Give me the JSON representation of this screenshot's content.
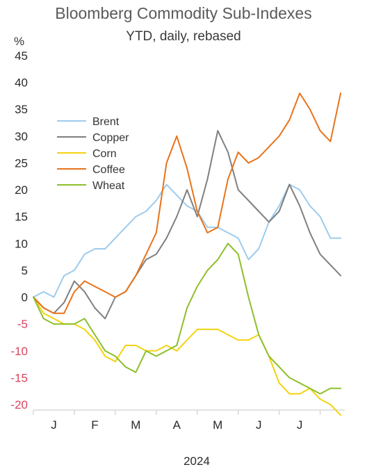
{
  "chart_data": {
    "type": "line",
    "title": "Bloomberg Commodity Sub-Indexes",
    "subtitle": "YTD, daily, rebased",
    "ylabel": "%",
    "xlabel": "2024",
    "ylim": [
      -20,
      45
    ],
    "yticks": [
      45,
      40,
      35,
      30,
      25,
      20,
      15,
      10,
      5,
      0,
      -5,
      -10,
      -15,
      -20
    ],
    "x_tick_labels": [
      "J",
      "F",
      "M",
      "A",
      "M",
      "J",
      "J"
    ],
    "x_month_positions": [
      0.5,
      1.5,
      2.5,
      3.5,
      4.5,
      5.5,
      6.5
    ],
    "x_range": [
      0,
      7.6
    ],
    "legend_position": "upper-left",
    "grid": false,
    "series": [
      {
        "name": "Brent",
        "color": "#9dcbed",
        "x": [
          0,
          0.25,
          0.5,
          0.75,
          1.0,
          1.25,
          1.5,
          1.75,
          2.0,
          2.25,
          2.5,
          2.75,
          3.0,
          3.25,
          3.5,
          3.75,
          4.0,
          4.25,
          4.5,
          4.75,
          5.0,
          5.25,
          5.5,
          5.75,
          6.0,
          6.25,
          6.5,
          6.75,
          7.0,
          7.25,
          7.5
        ],
        "values": [
          0,
          1,
          0,
          4,
          5,
          8,
          9,
          9,
          11,
          13,
          15,
          16,
          18,
          21,
          19,
          17,
          16,
          13,
          13,
          12,
          11,
          7,
          9,
          14,
          17,
          21,
          20,
          17,
          15,
          11,
          11
        ]
      },
      {
        "name": "Copper",
        "color": "#7f7f7f",
        "x": [
          0,
          0.25,
          0.5,
          0.75,
          1.0,
          1.25,
          1.5,
          1.75,
          2.0,
          2.25,
          2.5,
          2.75,
          3.0,
          3.25,
          3.5,
          3.75,
          4.0,
          4.25,
          4.5,
          4.75,
          5.0,
          5.25,
          5.5,
          5.75,
          6.0,
          6.25,
          6.5,
          6.75,
          7.0,
          7.25,
          7.5
        ],
        "values": [
          0,
          -2,
          -3,
          -1,
          3,
          1,
          -2,
          -4,
          0,
          1,
          4,
          7,
          8,
          11,
          15,
          20,
          15,
          22,
          31,
          27,
          20,
          18,
          16,
          14,
          16,
          21,
          17,
          12,
          8,
          6,
          4
        ]
      },
      {
        "name": "Corn",
        "color": "#f5d20f",
        "x": [
          0,
          0.25,
          0.5,
          0.75,
          1.0,
          1.25,
          1.5,
          1.75,
          2.0,
          2.25,
          2.5,
          2.75,
          3.0,
          3.25,
          3.5,
          3.75,
          4.0,
          4.25,
          4.5,
          4.75,
          5.0,
          5.25,
          5.5,
          5.75,
          6.0,
          6.25,
          6.5,
          6.75,
          7.0,
          7.25,
          7.5
        ],
        "values": [
          0,
          -3,
          -4,
          -5,
          -5,
          -6,
          -8,
          -11,
          -12,
          -9,
          -9,
          -10,
          -10,
          -9,
          -10,
          -8,
          -6,
          -6,
          -6,
          -7,
          -8,
          -8,
          -7,
          -11,
          -16,
          -18,
          -18,
          -17,
          -19,
          -20,
          -22
        ]
      },
      {
        "name": "Coffee",
        "color": "#e8731a",
        "x": [
          0,
          0.25,
          0.5,
          0.75,
          1.0,
          1.25,
          1.5,
          1.75,
          2.0,
          2.25,
          2.5,
          2.75,
          3.0,
          3.25,
          3.5,
          3.75,
          4.0,
          4.25,
          4.5,
          4.75,
          5.0,
          5.25,
          5.5,
          5.75,
          6.0,
          6.25,
          6.5,
          6.75,
          7.0,
          7.25,
          7.5
        ],
        "values": [
          0,
          -2,
          -3,
          -3,
          1,
          3,
          2,
          1,
          0,
          1,
          4,
          8,
          12,
          25,
          30,
          24,
          16,
          12,
          13,
          22,
          27,
          25,
          26,
          28,
          30,
          33,
          38,
          35,
          31,
          29,
          38
        ]
      },
      {
        "name": "Wheat",
        "color": "#8dbf2a",
        "x": [
          0,
          0.25,
          0.5,
          0.75,
          1.0,
          1.25,
          1.5,
          1.75,
          2.0,
          2.25,
          2.5,
          2.75,
          3.0,
          3.25,
          3.5,
          3.75,
          4.0,
          4.25,
          4.5,
          4.75,
          5.0,
          5.25,
          5.5,
          5.75,
          6.0,
          6.25,
          6.5,
          6.75,
          7.0,
          7.25,
          7.5
        ],
        "values": [
          0,
          -4,
          -5,
          -5,
          -5,
          -4,
          -7,
          -10,
          -11,
          -13,
          -14,
          -10,
          -11,
          -10,
          -9,
          -2,
          2,
          5,
          7,
          10,
          8,
          0,
          -7,
          -11,
          -13,
          -15,
          -16,
          -17,
          -18,
          -17,
          -17
        ]
      }
    ]
  }
}
